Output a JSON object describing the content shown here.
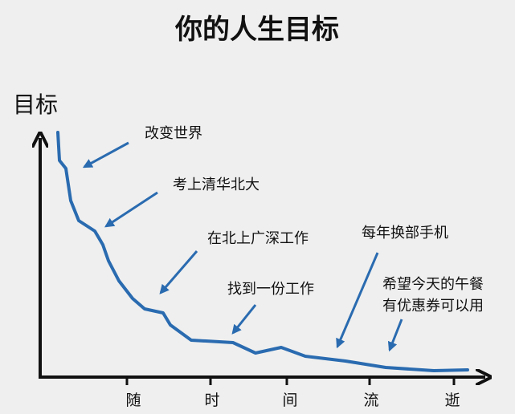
{
  "title": "你的人生目标",
  "y_axis_label": "目标",
  "x_axis_labels": [
    "随",
    "时",
    "间",
    "流",
    "逝"
  ],
  "annotations": [
    [
      "改变世界"
    ],
    [
      "考上清华北大"
    ],
    [
      "在北上广深工作"
    ],
    [
      "找到一份工作"
    ],
    [
      "每年换部手机"
    ],
    [
      "希望今天的午餐",
      "有优惠券可以用"
    ]
  ]
}
